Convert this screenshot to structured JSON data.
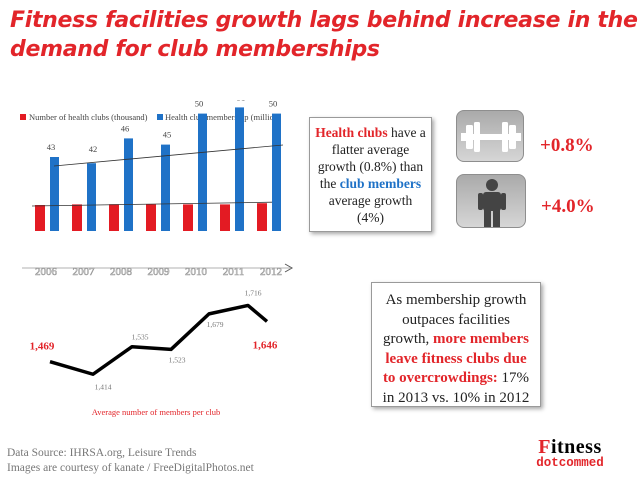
{
  "title": {
    "line1": "Fitness facilities growth lags behind increase in the",
    "line2": "demand for club memberships"
  },
  "colors": {
    "red": "#e2252a",
    "blue": "#1f72c7",
    "accent_red_bar": "#e31b23"
  },
  "chart_data": [
    {
      "type": "bar",
      "categories": [
        "2006",
        "2007",
        "2008",
        "2009",
        "2010",
        "2011",
        "2012"
      ],
      "series": [
        {
          "name": "Number of health clubs (thousand)",
          "values": [
            29.6,
            29.9,
            30.0,
            29.9,
            29.9,
            29.9,
            30.5
          ]
        },
        {
          "name": "Health club membership (million)",
          "values": [
            43,
            42,
            46,
            45,
            50,
            51,
            50
          ]
        }
      ],
      "data_labels": [
        "43",
        "42",
        "46",
        "45",
        "50",
        "51",
        "50"
      ],
      "legend_position": "top-left",
      "ylim": [
        0,
        55
      ]
    },
    {
      "type": "line",
      "categories": [
        "2006",
        "2007",
        "2008",
        "2009",
        "2010",
        "2011",
        "2012"
      ],
      "series": [
        {
          "name": "Average number of members per club",
          "values": [
            1469,
            1414,
            1535,
            1523,
            1679,
            1716,
            1646
          ]
        }
      ],
      "data_labels": [
        "1,469",
        "1,414",
        "1,535",
        "1,523",
        "1,679",
        "1,716",
        "1,646"
      ],
      "xlabel": "Average number of members per club",
      "ylim": [
        1380,
        1740
      ]
    }
  ],
  "callout_top": {
    "p1": "Health clubs",
    "p2": " have a flatter average growth (0.8%) than the ",
    "p3": "club members",
    "p4": " average growth (4%)"
  },
  "stats": {
    "clubs_growth": "+0.8%",
    "members_growth": "+4.0%"
  },
  "icons": {
    "dumbbell": "dumbbell-icon",
    "person": "person-icon"
  },
  "callout_bottom": {
    "p1": "As membership growth outpaces facilities growth, ",
    "p2": "more members leave fitness clubs due to overcrowdings:",
    "p3": " 17% in 2013 vs. 10% in 2012"
  },
  "source": {
    "line1": "Data Source: IHRSA.org, Leisure Trends",
    "line2": "Images are courtesy of kanate / FreeDigitalPhotos.net"
  },
  "brand": {
    "top_f": "F",
    "top_rest": "itness",
    "bottom": "dotcommed"
  }
}
